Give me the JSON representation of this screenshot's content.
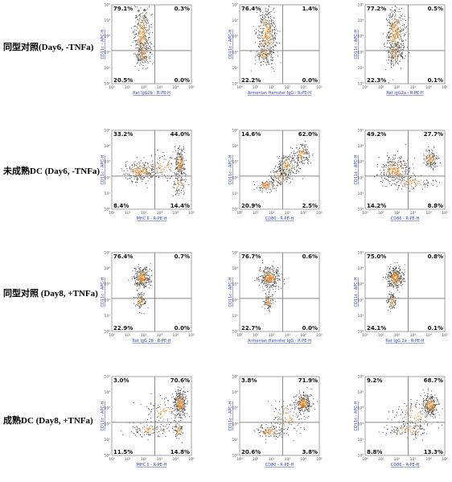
{
  "row_labels": [
    "同型对照(Day6, -TNFa)",
    "未成熟DC (Day6, -TNFa)",
    "同型对照 (Day8, +TNFa)",
    "成熟DC (Day8, +TNFa)"
  ],
  "colors": {
    "density_high": "#f07a10",
    "density_mid": "#8a6a3a",
    "density_low": "#333333",
    "gate": "#888888",
    "axis_label": "#3344cc"
  },
  "chart_data": [
    {
      "type": "scatter",
      "row": 0,
      "col": 0,
      "xlabel": "Rat IgG2b - R-PE-H",
      "ylabel": "CD11c - APC-H",
      "x_ticks": [
        "10⁰",
        "10¹",
        "10²",
        "10³",
        "10⁴",
        "10⁵"
      ],
      "y_ticks": [
        "10⁰",
        "10¹",
        "10²",
        "10³",
        "10⁴",
        "10⁵"
      ],
      "quadrants": {
        "ul": "79.1%",
        "ur": "0.3%",
        "ll": "20.5%",
        "lr": "0.0%"
      },
      "clusters": [
        {
          "x": 1.9,
          "y": 3.2,
          "sx": 0.25,
          "sy": 0.9,
          "n": 420
        },
        {
          "x": 2.0,
          "y": 1.9,
          "sx": 0.25,
          "sy": 0.35,
          "n": 120
        }
      ]
    },
    {
      "type": "scatter",
      "row": 0,
      "col": 1,
      "xlabel": "Armenian Hamster IgG - R-PE-H",
      "ylabel": "CD11c - APC-H",
      "x_ticks": [
        "10⁰",
        "10¹",
        "10²",
        "10³",
        "10⁴",
        "10⁵"
      ],
      "y_ticks": [
        "10⁰",
        "10¹",
        "10²",
        "10³",
        "10⁴",
        "10⁵"
      ],
      "quadrants": {
        "ul": "76.4%",
        "ur": "1.4%",
        "ll": "22.2%",
        "lr": "0.0%"
      },
      "clusters": [
        {
          "x": 1.7,
          "y": 3.1,
          "sx": 0.3,
          "sy": 0.85,
          "n": 420
        },
        {
          "x": 1.6,
          "y": 1.9,
          "sx": 0.3,
          "sy": 0.35,
          "n": 120
        }
      ]
    },
    {
      "type": "scatter",
      "row": 0,
      "col": 2,
      "xlabel": "Rat IgG2a - R-PE-H",
      "ylabel": "CD11c - APC-H",
      "x_ticks": [
        "10⁰",
        "10¹",
        "10²",
        "10³",
        "10⁴",
        "10⁵"
      ],
      "y_ticks": [
        "10⁰",
        "10¹",
        "10²",
        "10³",
        "10⁴",
        "10⁵"
      ],
      "quadrants": {
        "ul": "77.2%",
        "ur": "0.5%",
        "ll": "22.3%",
        "lr": "0.1%"
      },
      "clusters": [
        {
          "x": 1.9,
          "y": 3.2,
          "sx": 0.28,
          "sy": 0.9,
          "n": 420
        },
        {
          "x": 1.9,
          "y": 1.9,
          "sx": 0.28,
          "sy": 0.35,
          "n": 120
        }
      ]
    },
    {
      "type": "scatter",
      "row": 1,
      "col": 0,
      "xlabel": "MHC II - R-PE-H",
      "ylabel": "CD11c - APC-H",
      "x_ticks": [
        "10⁰",
        "10¹",
        "10²",
        "10³",
        "10⁴",
        "10⁵"
      ],
      "y_ticks": [
        "10⁰",
        "10¹",
        "10²",
        "10³",
        "10⁴",
        "10⁵"
      ],
      "quadrants": {
        "ul": "33.2%",
        "ur": "44.0%",
        "ll": "8.4%",
        "lr": "14.4%"
      },
      "clusters": [
        {
          "x": 1.8,
          "y": 2.4,
          "sx": 0.55,
          "sy": 0.3,
          "n": 260
        },
        {
          "x": 4.3,
          "y": 2.9,
          "sx": 0.15,
          "sy": 0.45,
          "n": 220
        },
        {
          "x": 3.2,
          "y": 2.6,
          "sx": 0.6,
          "sy": 0.5,
          "n": 110
        },
        {
          "x": 4.2,
          "y": 1.6,
          "sx": 0.2,
          "sy": 0.35,
          "n": 80
        }
      ]
    },
    {
      "type": "scatter",
      "row": 1,
      "col": 1,
      "xlabel": "CD80 - R-PE-H",
      "ylabel": "CD11c - APC-H",
      "x_ticks": [
        "10⁰",
        "10¹",
        "10²",
        "10³",
        "10⁴",
        "10⁵"
      ],
      "y_ticks": [
        "10⁰",
        "10¹",
        "10²",
        "10³",
        "10⁴",
        "10⁵"
      ],
      "quadrants": {
        "ul": "14.6%",
        "ur": "62.0%",
        "ll": "20.9%",
        "lr": "2.5%"
      },
      "clusters": [
        {
          "x": 1.7,
          "y": 1.5,
          "sx": 0.35,
          "sy": 0.2,
          "n": 120
        },
        {
          "x": 2.6,
          "y": 2.1,
          "sx": 0.35,
          "sy": 0.3,
          "n": 120
        },
        {
          "x": 3.0,
          "y": 2.8,
          "sx": 0.3,
          "sy": 0.35,
          "n": 200
        },
        {
          "x": 3.9,
          "y": 3.5,
          "sx": 0.25,
          "sy": 0.3,
          "n": 160
        }
      ]
    },
    {
      "type": "scatter",
      "row": 1,
      "col": 2,
      "xlabel": "CD86 - R-PE-H",
      "ylabel": "CD11c - APC-H",
      "x_ticks": [
        "10⁰",
        "10¹",
        "10²",
        "10³",
        "10⁴",
        "10⁵"
      ],
      "y_ticks": [
        "10⁰",
        "10¹",
        "10²",
        "10³",
        "10⁴",
        "10⁵"
      ],
      "quadrants": {
        "ul": "49.2%",
        "ur": "27.7%",
        "ll": "14.2%",
        "lr": "8.8%"
      },
      "clusters": [
        {
          "x": 1.9,
          "y": 2.5,
          "sx": 0.5,
          "sy": 0.4,
          "n": 300
        },
        {
          "x": 4.1,
          "y": 3.2,
          "sx": 0.2,
          "sy": 0.3,
          "n": 150
        },
        {
          "x": 2.9,
          "y": 1.7,
          "sx": 0.7,
          "sy": 0.25,
          "n": 120
        }
      ]
    },
    {
      "type": "scatter",
      "row": 2,
      "col": 0,
      "xlabel": "Rat IgG 2b - R-PE-H",
      "ylabel": "CD11c - APC-H",
      "x_ticks": [
        "10⁰",
        "10¹",
        "10²",
        "10³",
        "10⁴",
        "10⁵"
      ],
      "y_ticks": [
        "10⁰",
        "10¹",
        "10²",
        "10³",
        "10⁴",
        "10⁵"
      ],
      "quadrants": {
        "ul": "76.4%",
        "ur": "0.7%",
        "ll": "22.9%",
        "lr": "0.0%"
      },
      "clusters": [
        {
          "x": 1.9,
          "y": 3.4,
          "sx": 0.25,
          "sy": 0.35,
          "n": 330
        },
        {
          "x": 1.8,
          "y": 1.9,
          "sx": 0.15,
          "sy": 0.25,
          "n": 100
        }
      ]
    },
    {
      "type": "scatter",
      "row": 2,
      "col": 1,
      "xlabel": "Armenian Hamster IgG - R-PE-H",
      "ylabel": "CD11c - APC-H",
      "x_ticks": [
        "10⁰",
        "10¹",
        "10²",
        "10³",
        "10⁴",
        "10⁵"
      ],
      "y_ticks": [
        "10⁰",
        "10¹",
        "10²",
        "10³",
        "10⁴",
        "10⁵"
      ],
      "quadrants": {
        "ul": "76.7%",
        "ur": "0.6%",
        "ll": "22.7%",
        "lr": "0.0%"
      },
      "clusters": [
        {
          "x": 1.9,
          "y": 3.4,
          "sx": 0.3,
          "sy": 0.35,
          "n": 330
        },
        {
          "x": 1.8,
          "y": 1.9,
          "sx": 0.15,
          "sy": 0.25,
          "n": 100
        }
      ]
    },
    {
      "type": "scatter",
      "row": 2,
      "col": 2,
      "xlabel": "Rat IgG 2a - R-PE-H",
      "ylabel": "CD11c - APC-H",
      "x_ticks": [
        "10⁰",
        "10¹",
        "10²",
        "10³",
        "10⁴",
        "10⁵"
      ],
      "y_ticks": [
        "10⁰",
        "10¹",
        "10²",
        "10³",
        "10⁴",
        "10⁵"
      ],
      "quadrants": {
        "ul": "75.0%",
        "ur": "0.8%",
        "ll": "24.1%",
        "lr": "0.1%"
      },
      "clusters": [
        {
          "x": 1.9,
          "y": 3.4,
          "sx": 0.25,
          "sy": 0.35,
          "n": 330
        },
        {
          "x": 1.7,
          "y": 1.9,
          "sx": 0.15,
          "sy": 0.25,
          "n": 100
        }
      ]
    },
    {
      "type": "scatter",
      "row": 3,
      "col": 0,
      "xlabel": "MHC II - R-PE-H",
      "ylabel": "CD11c - APC-H",
      "x_ticks": [
        "10⁰",
        "10¹",
        "10²",
        "10³",
        "10⁴",
        "10⁵"
      ],
      "y_ticks": [
        "10⁰",
        "10¹",
        "10²",
        "10³",
        "10⁴",
        "10⁵"
      ],
      "quadrants": {
        "ul": "3.0%",
        "ur": "70.6%",
        "ll": "11.5%",
        "lr": "14.8%"
      },
      "clusters": [
        {
          "x": 4.3,
          "y": 3.3,
          "sx": 0.2,
          "sy": 0.4,
          "n": 300
        },
        {
          "x": 3.3,
          "y": 2.7,
          "sx": 0.6,
          "sy": 0.5,
          "n": 120
        },
        {
          "x": 2.4,
          "y": 1.6,
          "sx": 0.6,
          "sy": 0.2,
          "n": 110
        },
        {
          "x": 4.2,
          "y": 1.6,
          "sx": 0.15,
          "sy": 0.25,
          "n": 70
        }
      ]
    },
    {
      "type": "scatter",
      "row": 3,
      "col": 1,
      "xlabel": "CD80 - R-PE-H",
      "ylabel": "CD11c - APC-H",
      "x_ticks": [
        "10⁰",
        "10¹",
        "10²",
        "10³",
        "10⁴",
        "10⁵"
      ],
      "y_ticks": [
        "10⁰",
        "10¹",
        "10²",
        "10³",
        "10⁴",
        "10⁵"
      ],
      "quadrants": {
        "ul": "3.8%",
        "ur": "71.9%",
        "ll": "20.6%",
        "lr": "3.8%"
      },
      "clusters": [
        {
          "x": 4.0,
          "y": 3.3,
          "sx": 0.25,
          "sy": 0.3,
          "n": 280
        },
        {
          "x": 3.0,
          "y": 2.4,
          "sx": 0.5,
          "sy": 0.5,
          "n": 130
        },
        {
          "x": 1.9,
          "y": 1.5,
          "sx": 0.4,
          "sy": 0.2,
          "n": 130
        }
      ]
    },
    {
      "type": "scatter",
      "row": 3,
      "col": 2,
      "xlabel": "CD86 - R-PE-H",
      "ylabel": "CD11c - APC-H",
      "x_ticks": [
        "10⁰",
        "10¹",
        "10²",
        "10³",
        "10⁴",
        "10⁵"
      ],
      "y_ticks": [
        "10⁰",
        "10¹",
        "10²",
        "10³",
        "10⁴",
        "10⁵"
      ],
      "quadrants": {
        "ul": "9.2%",
        "ur": "68.7%",
        "ll": "8.8%",
        "lr": "13.3%"
      },
      "clusters": [
        {
          "x": 4.1,
          "y": 3.2,
          "sx": 0.25,
          "sy": 0.35,
          "n": 280
        },
        {
          "x": 3.1,
          "y": 2.5,
          "sx": 0.6,
          "sy": 0.5,
          "n": 130
        },
        {
          "x": 2.7,
          "y": 1.6,
          "sx": 0.7,
          "sy": 0.2,
          "n": 120
        }
      ]
    }
  ]
}
